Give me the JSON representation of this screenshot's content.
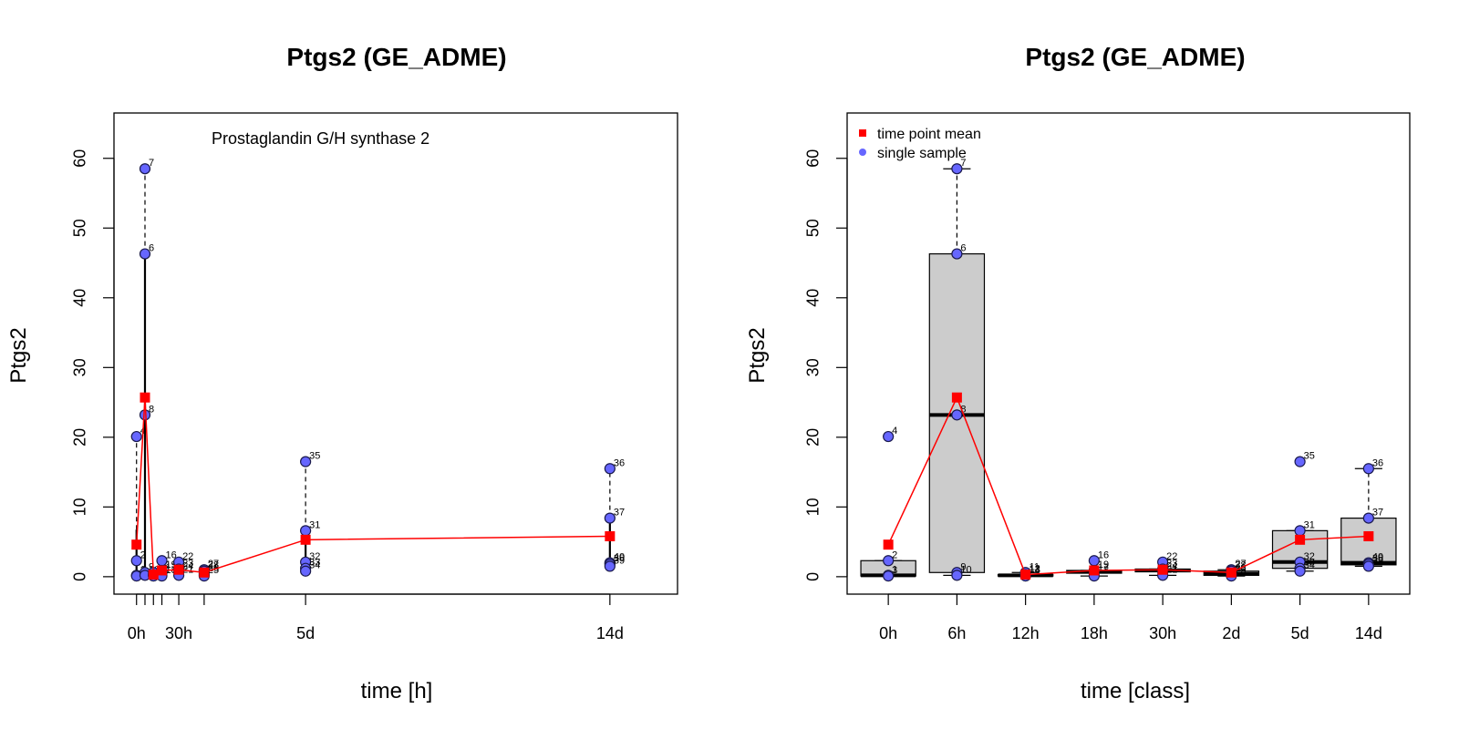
{
  "chart_data": [
    {
      "type": "scatter",
      "title": "Ptgs2 (GE_ADME)",
      "subtitle": "Prostaglandin G/H synthase 2",
      "xlabel": "time [h]",
      "ylabel": "Ptgs2",
      "xlim": [
        -16,
        384
      ],
      "ylim": [
        -2.5,
        66.5
      ],
      "grid": false,
      "x_tick_positions": [
        0,
        6,
        12,
        18,
        30,
        48,
        120,
        336
      ],
      "x_tick_labels": [
        "0h",
        "",
        "",
        "",
        "30h",
        "",
        "5d",
        "14d"
      ],
      "y_ticks": [
        0,
        10,
        20,
        30,
        40,
        50,
        60
      ],
      "y_tick_labels": [
        "0",
        "10",
        "20",
        "30",
        "40",
        "50",
        "60"
      ],
      "series": [
        {
          "name": "single sample",
          "color": "#6666ff",
          "points": [
            {
              "x": 0,
              "y": 20.1,
              "label": "4"
            },
            {
              "x": 0,
              "y": 2.3,
              "label": "2"
            },
            {
              "x": 0,
              "y": 0.2,
              "label": "1"
            },
            {
              "x": 0,
              "y": 0.1,
              "label": "3"
            },
            {
              "x": 6,
              "y": 58.5,
              "label": "7"
            },
            {
              "x": 6,
              "y": 46.3,
              "label": "6"
            },
            {
              "x": 6,
              "y": 23.2,
              "label": "8"
            },
            {
              "x": 6,
              "y": 0.6,
              "label": "9"
            },
            {
              "x": 6,
              "y": 0.2,
              "label": "10"
            },
            {
              "x": 12,
              "y": 0.6,
              "label": "11"
            },
            {
              "x": 12,
              "y": 0.3,
              "label": "12"
            },
            {
              "x": 12,
              "y": 0.2,
              "label": "13"
            },
            {
              "x": 12,
              "y": 0.1,
              "label": "14"
            },
            {
              "x": 18,
              "y": 2.3,
              "label": "16"
            },
            {
              "x": 18,
              "y": 0.9,
              "label": "19"
            },
            {
              "x": 18,
              "y": 0.5,
              "label": "17"
            },
            {
              "x": 18,
              "y": 0.1,
              "label": "18"
            },
            {
              "x": 30,
              "y": 2.1,
              "label": "22"
            },
            {
              "x": 30,
              "y": 1.1,
              "label": "23"
            },
            {
              "x": 30,
              "y": 0.7,
              "label": "24"
            },
            {
              "x": 30,
              "y": 0.2,
              "label": "21"
            },
            {
              "x": 48,
              "y": 1.0,
              "label": "27"
            },
            {
              "x": 48,
              "y": 0.8,
              "label": "28"
            },
            {
              "x": 48,
              "y": 0.4,
              "label": "26"
            },
            {
              "x": 48,
              "y": 0.1,
              "label": "25"
            },
            {
              "x": 120,
              "y": 16.5,
              "label": "35"
            },
            {
              "x": 120,
              "y": 6.6,
              "label": "31"
            },
            {
              "x": 120,
              "y": 2.1,
              "label": "32"
            },
            {
              "x": 120,
              "y": 1.2,
              "label": "33"
            },
            {
              "x": 120,
              "y": 0.8,
              "label": "34"
            },
            {
              "x": 336,
              "y": 15.5,
              "label": "36"
            },
            {
              "x": 336,
              "y": 8.4,
              "label": "37"
            },
            {
              "x": 336,
              "y": 2.0,
              "label": "40"
            },
            {
              "x": 336,
              "y": 1.8,
              "label": "38"
            },
            {
              "x": 336,
              "y": 1.5,
              "label": "39"
            }
          ]
        },
        {
          "name": "time point mean",
          "color": "#ff0000",
          "x": [
            0,
            6,
            12,
            18,
            30,
            48,
            120,
            336
          ],
          "y": [
            4.6,
            25.7,
            0.3,
            0.9,
            1.0,
            0.6,
            5.3,
            5.8
          ]
        }
      ]
    },
    {
      "type": "box",
      "title": "Ptgs2 (GE_ADME)",
      "xlabel": "time [class]",
      "ylabel": "Ptgs2",
      "ylim": [
        -2.5,
        66.5
      ],
      "grid": false,
      "legend_position": "top-left",
      "categories": [
        "0h",
        "6h",
        "12h",
        "18h",
        "30h",
        "2d",
        "5d",
        "14d"
      ],
      "y_ticks": [
        0,
        10,
        20,
        30,
        40,
        50,
        60
      ],
      "y_tick_labels": [
        "0",
        "10",
        "20",
        "30",
        "40",
        "50",
        "60"
      ],
      "boxes": [
        {
          "q1": 0.1,
          "median": 0.2,
          "q3": 2.3,
          "whisker_low": 0.1,
          "whisker_high": 2.3
        },
        {
          "q1": 0.6,
          "median": 23.2,
          "q3": 46.3,
          "whisker_low": 0.2,
          "whisker_high": 58.5
        },
        {
          "q1": 0.1,
          "median": 0.2,
          "q3": 0.3,
          "whisker_low": 0.1,
          "whisker_high": 0.6
        },
        {
          "q1": 0.5,
          "median": 0.7,
          "q3": 0.9,
          "whisker_low": 0.1,
          "whisker_high": 0.9
        },
        {
          "q1": 0.7,
          "median": 0.9,
          "q3": 1.1,
          "whisker_low": 0.2,
          "whisker_high": 1.1
        },
        {
          "q1": 0.2,
          "median": 0.4,
          "q3": 0.8,
          "whisker_low": 0.1,
          "whisker_high": 1.0
        },
        {
          "q1": 1.2,
          "median": 2.1,
          "q3": 6.6,
          "whisker_low": 0.8,
          "whisker_high": 6.6
        },
        {
          "q1": 1.7,
          "median": 2.0,
          "q3": 8.4,
          "whisker_low": 1.5,
          "whisker_high": 15.5
        }
      ],
      "outliers": [
        {
          "category": "0h",
          "y": 20.1,
          "label": "4"
        },
        {
          "category": "5d",
          "y": 16.5,
          "label": "35"
        }
      ],
      "series": [
        {
          "name": "single sample",
          "color": "#6666ff",
          "points": [
            {
              "category": "0h",
              "y": 20.1,
              "label": "4"
            },
            {
              "category": "0h",
              "y": 2.3,
              "label": "2"
            },
            {
              "category": "0h",
              "y": 0.2,
              "label": "1"
            },
            {
              "category": "0h",
              "y": 0.1,
              "label": "3"
            },
            {
              "category": "6h",
              "y": 58.5,
              "label": "7"
            },
            {
              "category": "6h",
              "y": 46.3,
              "label": "6"
            },
            {
              "category": "6h",
              "y": 23.2,
              "label": "8"
            },
            {
              "category": "6h",
              "y": 0.6,
              "label": "9"
            },
            {
              "category": "6h",
              "y": 0.2,
              "label": "10"
            },
            {
              "category": "12h",
              "y": 0.6,
              "label": "11"
            },
            {
              "category": "12h",
              "y": 0.3,
              "label": "12"
            },
            {
              "category": "12h",
              "y": 0.2,
              "label": "13"
            },
            {
              "category": "12h",
              "y": 0.1,
              "label": "14"
            },
            {
              "category": "18h",
              "y": 2.3,
              "label": "16"
            },
            {
              "category": "18h",
              "y": 0.9,
              "label": "19"
            },
            {
              "category": "18h",
              "y": 0.5,
              "label": "17"
            },
            {
              "category": "18h",
              "y": 0.1,
              "label": "18"
            },
            {
              "category": "30h",
              "y": 2.1,
              "label": "22"
            },
            {
              "category": "30h",
              "y": 1.1,
              "label": "23"
            },
            {
              "category": "30h",
              "y": 0.7,
              "label": "24"
            },
            {
              "category": "30h",
              "y": 0.2,
              "label": "21"
            },
            {
              "category": "2d",
              "y": 1.0,
              "label": "27"
            },
            {
              "category": "2d",
              "y": 0.8,
              "label": "28"
            },
            {
              "category": "2d",
              "y": 0.4,
              "label": "26"
            },
            {
              "category": "2d",
              "y": 0.1,
              "label": "25"
            },
            {
              "category": "5d",
              "y": 16.5,
              "label": "35"
            },
            {
              "category": "5d",
              "y": 6.6,
              "label": "31"
            },
            {
              "category": "5d",
              "y": 2.1,
              "label": "32"
            },
            {
              "category": "5d",
              "y": 1.2,
              "label": "33"
            },
            {
              "category": "5d",
              "y": 0.8,
              "label": "34"
            },
            {
              "category": "14d",
              "y": 15.5,
              "label": "36"
            },
            {
              "category": "14d",
              "y": 8.4,
              "label": "37"
            },
            {
              "category": "14d",
              "y": 2.0,
              "label": "40"
            },
            {
              "category": "14d",
              "y": 1.8,
              "label": "38"
            },
            {
              "category": "14d",
              "y": 1.5,
              "label": "39"
            }
          ]
        },
        {
          "name": "time point mean",
          "color": "#ff0000",
          "values": [
            4.6,
            25.7,
            0.3,
            0.9,
            1.0,
            0.6,
            5.3,
            5.8
          ]
        }
      ],
      "legend": [
        {
          "label": "time point mean",
          "marker": "square",
          "color": "#ff0000"
        },
        {
          "label": "single sample",
          "marker": "circle",
          "color": "#6666ff"
        }
      ]
    }
  ]
}
